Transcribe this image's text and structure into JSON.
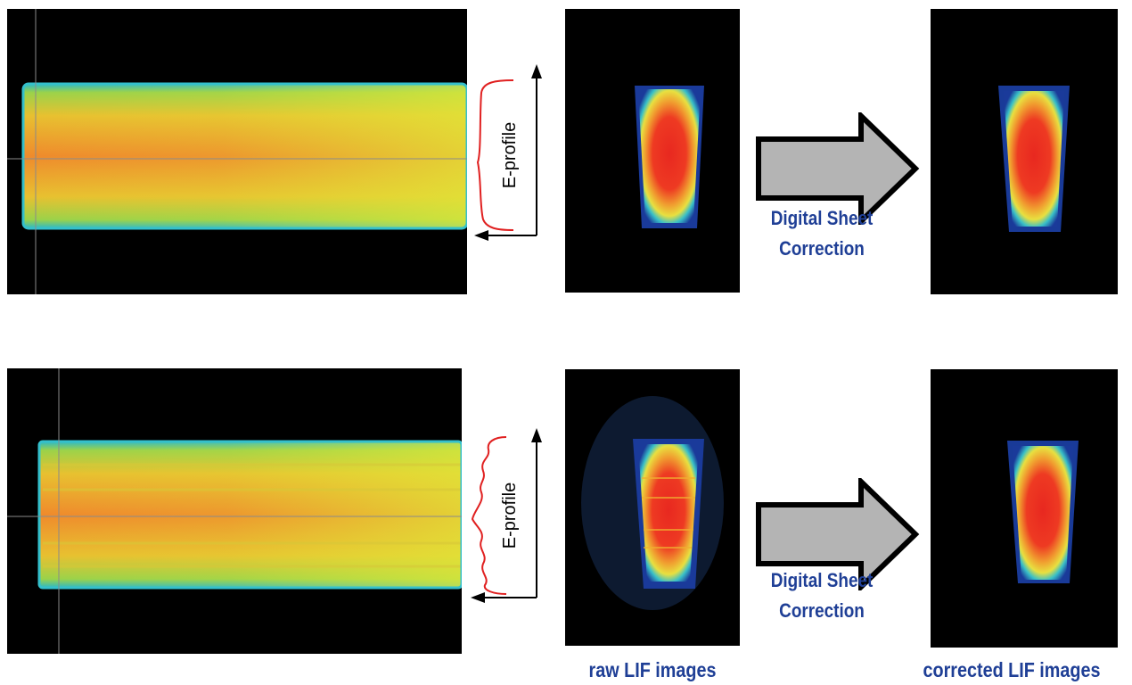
{
  "rows": [
    {
      "eprofile_label": "E-profile",
      "correction_line1": "Digital Sheet",
      "correction_line2": "Correction"
    },
    {
      "eprofile_label": "E-profile",
      "correction_line1": "Digital Sheet",
      "correction_line2": "Correction"
    }
  ],
  "captions": {
    "raw": "raw LIF images",
    "corrected": "corrected LIF images"
  },
  "colors": {
    "caption_blue": "#1f3f96",
    "profile_red": "#e02020",
    "arrow_fill": "#b4b4b4"
  }
}
